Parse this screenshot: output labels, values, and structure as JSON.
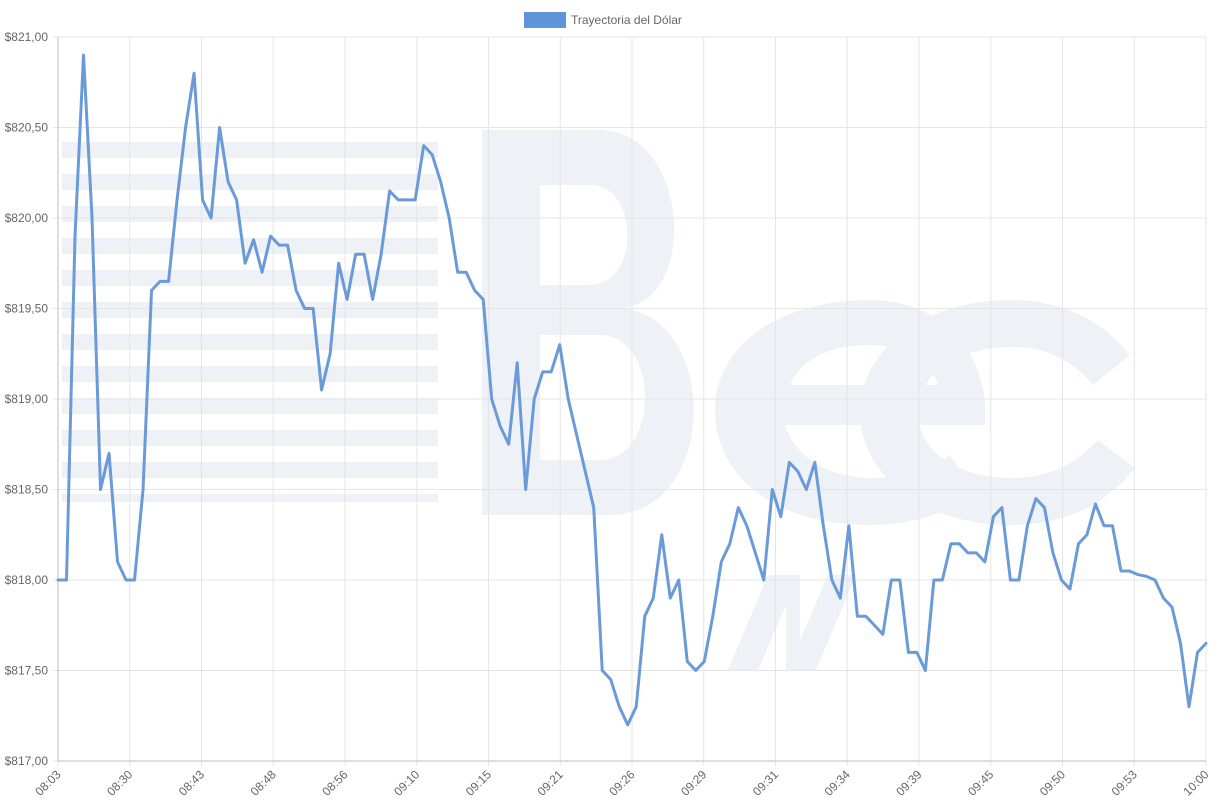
{
  "chart_data": {
    "type": "line",
    "legend": {
      "label": "Trayectoria del Dólar",
      "placement": "top-center",
      "color": "#5f94d9"
    },
    "line_color": "#6a9bd8",
    "ylim": [
      817.0,
      821.0
    ],
    "y_ticks": [
      {
        "value": 821.0,
        "label": "$821,00"
      },
      {
        "value": 820.5,
        "label": "$820,50"
      },
      {
        "value": 820.0,
        "label": "$820,00"
      },
      {
        "value": 819.5,
        "label": "$819,50"
      },
      {
        "value": 819.0,
        "label": "$819,00"
      },
      {
        "value": 818.5,
        "label": "$818,50"
      },
      {
        "value": 818.0,
        "label": "$818,00"
      },
      {
        "value": 817.5,
        "label": "$817,50"
      },
      {
        "value": 817.0,
        "label": "$817,00"
      }
    ],
    "x_tick_labels": [
      "08:03",
      "08:30",
      "08:43",
      "08:48",
      "08:56",
      "09:10",
      "09:15",
      "09:21",
      "09:26",
      "09:29",
      "09:31",
      "09:34",
      "09:39",
      "09:45",
      "09:50",
      "09:53",
      "10:00"
    ],
    "grid": true,
    "values": [
      818.0,
      818.0,
      819.9,
      820.9,
      820.0,
      818.5,
      818.7,
      818.1,
      818.0,
      818.0,
      818.5,
      819.6,
      819.65,
      819.65,
      820.1,
      820.5,
      820.8,
      820.1,
      820.0,
      820.5,
      820.2,
      820.1,
      819.75,
      819.88,
      819.7,
      819.9,
      819.85,
      819.85,
      819.6,
      819.5,
      819.5,
      819.05,
      819.25,
      819.75,
      819.55,
      819.8,
      819.8,
      819.55,
      819.8,
      820.15,
      820.1,
      820.1,
      820.1,
      820.4,
      820.35,
      820.2,
      820.0,
      819.7,
      819.7,
      819.6,
      819.55,
      819.0,
      818.85,
      818.75,
      819.2,
      818.5,
      819.0,
      819.15,
      819.15,
      819.3,
      819.0,
      818.8,
      818.6,
      818.4,
      817.5,
      817.45,
      817.3,
      817.2,
      817.3,
      817.8,
      817.9,
      818.25,
      817.9,
      818.0,
      817.55,
      817.5,
      817.55,
      817.8,
      818.1,
      818.2,
      818.4,
      818.3,
      818.15,
      818.0,
      818.5,
      818.35,
      818.65,
      818.6,
      818.5,
      818.65,
      818.3,
      818.0,
      817.9,
      818.3,
      817.8,
      817.8,
      817.75,
      817.7,
      818.0,
      818.0,
      817.6,
      817.6,
      817.5,
      818.0,
      818.0,
      818.2,
      818.2,
      818.15,
      818.15,
      818.1,
      818.35,
      818.4,
      818.0,
      818.0,
      818.3,
      818.45,
      818.4,
      818.15,
      818.0,
      817.95,
      818.2,
      818.25,
      818.42,
      818.3,
      818.3,
      818.05,
      818.05,
      818.03,
      818.02,
      818.0,
      817.9,
      817.85,
      817.65,
      817.3,
      817.6,
      817.65
    ]
  }
}
